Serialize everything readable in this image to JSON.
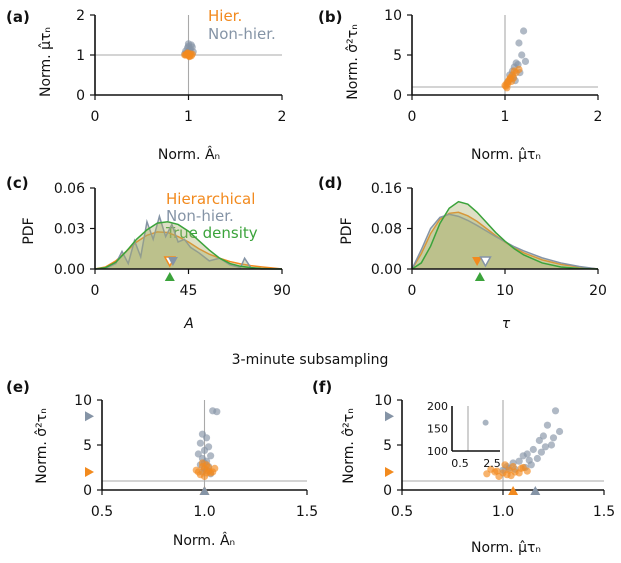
{
  "colors": {
    "hier": "#f28a1e",
    "nonhier": "#8594a6",
    "true": "#3ba33b",
    "refline": "#a9a9a9",
    "fill": "#a8ad69"
  },
  "subsampling_title": "3-minute subsampling",
  "chart_data": [
    {
      "id": "a",
      "type": "scatter",
      "panel_label": "(a)",
      "xlabel": "Norm. Âₙ",
      "ylabel": "Norm. μ̂τₙ",
      "xlim": [
        0,
        2
      ],
      "ylim": [
        0,
        2
      ],
      "xticks": [
        "0",
        "1",
        "2"
      ],
      "yticks": [
        "0",
        "1",
        "2"
      ],
      "xtick_values": [
        0,
        1,
        2
      ],
      "ytick_values": [
        0,
        1,
        2
      ],
      "refline_x": 1,
      "refline_y": 1,
      "legend": [
        {
          "name": "Hier.",
          "color_key": "hier"
        },
        {
          "name": "Non-hier.",
          "color_key": "nonhier"
        }
      ],
      "series": [
        {
          "name": "Non-hier.",
          "color_key": "nonhier",
          "x": [
            1.0,
            1.02,
            0.97,
            1.05,
            0.99,
            1.03,
            0.98,
            1.01,
            1.04,
            0.96,
            1.02,
            1.0
          ],
          "y": [
            1.22,
            1.15,
            1.1,
            1.08,
            1.18,
            1.25,
            1.05,
            1.12,
            1.2,
            1.03,
            1.06,
            1.28
          ]
        },
        {
          "name": "Hier.",
          "color_key": "hier",
          "x": [
            0.97,
            1.0,
            1.03,
            0.99,
            1.01,
            0.98,
            1.02,
            1.0,
            0.96,
            1.04,
            1.01,
            0.99
          ],
          "y": [
            1.0,
            1.02,
            0.98,
            1.05,
            0.96,
            1.01,
            1.03,
            0.99,
            1.0,
            1.02,
            0.97,
            1.04
          ]
        }
      ]
    },
    {
      "id": "b",
      "type": "scatter",
      "panel_label": "(b)",
      "xlabel": "Norm. μ̂τₙ",
      "ylabel": "Norm. σ̂²τₙ",
      "xlim": [
        0,
        2
      ],
      "ylim": [
        0,
        10
      ],
      "xticks": [
        "0",
        "1",
        "2"
      ],
      "yticks": [
        "0",
        "5",
        "10"
      ],
      "xtick_values": [
        0,
        1,
        2
      ],
      "ytick_values": [
        0,
        5,
        10
      ],
      "refline_x": 1,
      "refline_y": 1,
      "series": [
        {
          "name": "Non-hier.",
          "color_key": "nonhier",
          "x": [
            1.2,
            1.15,
            1.18,
            1.12,
            1.1,
            1.08,
            1.05,
            1.14,
            1.22,
            1.16,
            1.09,
            1.03,
            1.11,
            1.06
          ],
          "y": [
            8.0,
            6.5,
            5.0,
            4.0,
            3.5,
            3.0,
            2.5,
            3.8,
            4.2,
            2.8,
            2.2,
            1.6,
            1.8,
            2.0
          ]
        },
        {
          "name": "Hier.",
          "color_key": "hier",
          "x": [
            1.0,
            1.02,
            1.05,
            1.08,
            1.04,
            1.1,
            1.06,
            1.01,
            1.12,
            1.03,
            1.07,
            1.15,
            1.02,
            1.09
          ],
          "y": [
            1.2,
            1.5,
            2.0,
            2.5,
            1.8,
            3.0,
            2.2,
            1.1,
            2.8,
            1.4,
            1.7,
            3.2,
            0.9,
            2.1
          ]
        }
      ]
    },
    {
      "id": "c",
      "type": "area",
      "panel_label": "(c)",
      "xlabel": "A",
      "ylabel": "PDF",
      "xlim": [
        0,
        90
      ],
      "ylim": [
        0,
        0.06
      ],
      "xticks": [
        "0",
        "45",
        "90"
      ],
      "yticks": [
        "0.00",
        "0.03",
        "0.06"
      ],
      "xtick_values": [
        0,
        45,
        90
      ],
      "ytick_values": [
        0,
        0.03,
        0.06
      ],
      "legend": [
        {
          "name": "Hierarchical",
          "color_key": "hier"
        },
        {
          "name": "Non-hier.",
          "color_key": "nonhier"
        },
        {
          "name": "True density",
          "color_key": "true"
        }
      ],
      "series": [
        {
          "name": "Hierarchical",
          "color_key": "hier",
          "x": [
            0,
            5,
            10,
            15,
            20,
            25,
            30,
            35,
            40,
            45,
            50,
            55,
            60,
            65,
            70,
            75,
            80,
            85,
            90
          ],
          "y": [
            0,
            0.0015,
            0.006,
            0.013,
            0.02,
            0.025,
            0.0275,
            0.027,
            0.024,
            0.02,
            0.015,
            0.011,
            0.008,
            0.0055,
            0.0038,
            0.0025,
            0.0016,
            0.0008,
            0
          ]
        },
        {
          "name": "Non-hier.",
          "color_key": "nonhier",
          "x": [
            0,
            5,
            10,
            13,
            16,
            19,
            22,
            25,
            28,
            31,
            34,
            37,
            40,
            43,
            46,
            50,
            55,
            60,
            65,
            70,
            72,
            75,
            80,
            90
          ],
          "y": [
            0,
            0.0005,
            0.004,
            0.013,
            0.004,
            0.021,
            0.009,
            0.035,
            0.022,
            0.039,
            0.024,
            0.033,
            0.02,
            0.022,
            0.016,
            0.012,
            0.006,
            0.008,
            0.003,
            0.001,
            0.008,
            0.001,
            0,
            0
          ]
        },
        {
          "name": "True density",
          "color_key": "true",
          "x": [
            0,
            5,
            10,
            15,
            20,
            25,
            30,
            35,
            40,
            45,
            50,
            55,
            60,
            65,
            70,
            75,
            80,
            85,
            90
          ],
          "y": [
            0,
            0.001,
            0.005,
            0.013,
            0.022,
            0.029,
            0.034,
            0.035,
            0.033,
            0.028,
            0.021,
            0.014,
            0.008,
            0.004,
            0.002,
            0.001,
            0.0004,
            0.0001,
            0
          ]
        }
      ],
      "markers": [
        {
          "series": "Hierarchical",
          "color_key": "hier",
          "x": 36,
          "shape": "down-hollow"
        },
        {
          "series": "Non-hier.",
          "color_key": "nonhier",
          "x": 37.5,
          "shape": "down"
        },
        {
          "series": "True density",
          "color_key": "true",
          "x": 36,
          "shape": "up"
        }
      ]
    },
    {
      "id": "d",
      "type": "area",
      "panel_label": "(d)",
      "xlabel": "τ",
      "ylabel": "PDF",
      "xlim": [
        0,
        20
      ],
      "ylim": [
        0,
        0.16
      ],
      "xticks": [
        "0",
        "10",
        "20"
      ],
      "yticks": [
        "0.00",
        "0.08",
        "0.16"
      ],
      "xtick_values": [
        0,
        10,
        20
      ],
      "ytick_values": [
        0,
        0.08,
        0.16
      ],
      "series": [
        {
          "name": "Hierarchical",
          "color_key": "hier",
          "x": [
            0,
            1,
            2,
            3,
            4,
            5,
            6,
            7,
            8,
            9,
            10,
            11,
            12,
            14,
            16,
            18,
            20
          ],
          "y": [
            0,
            0.03,
            0.07,
            0.098,
            0.11,
            0.112,
            0.105,
            0.094,
            0.08,
            0.066,
            0.053,
            0.042,
            0.032,
            0.018,
            0.009,
            0.004,
            0
          ]
        },
        {
          "name": "Non-hier.",
          "color_key": "nonhier",
          "x": [
            0,
            1,
            2,
            3,
            4,
            5,
            6,
            7,
            8,
            9,
            10,
            11,
            12,
            14,
            16,
            18,
            20
          ],
          "y": [
            0,
            0.038,
            0.08,
            0.102,
            0.108,
            0.104,
            0.096,
            0.086,
            0.075,
            0.064,
            0.054,
            0.044,
            0.036,
            0.022,
            0.012,
            0.005,
            0
          ]
        },
        {
          "name": "True density",
          "color_key": "true",
          "x": [
            0,
            1,
            2,
            3,
            4,
            5,
            6,
            7,
            8,
            9,
            10,
            11,
            12,
            14,
            16,
            18,
            20
          ],
          "y": [
            0,
            0.012,
            0.045,
            0.09,
            0.12,
            0.133,
            0.128,
            0.112,
            0.092,
            0.072,
            0.055,
            0.04,
            0.028,
            0.012,
            0.004,
            0.001,
            0
          ]
        }
      ],
      "markers": [
        {
          "series": "Hierarchical",
          "color_key": "hier",
          "x": 7.0,
          "shape": "down"
        },
        {
          "series": "Non-hier.",
          "color_key": "nonhier",
          "x": 7.9,
          "shape": "down-hollow"
        },
        {
          "series": "True density",
          "color_key": "true",
          "x": 7.3,
          "shape": "up"
        }
      ]
    },
    {
      "id": "e",
      "type": "scatter",
      "panel_label": "(e)",
      "xlabel": "Norm. Âₙ",
      "ylabel": "Norm. σ̂²τₙ",
      "xlim": [
        0.5,
        1.5
      ],
      "ylim": [
        0,
        10
      ],
      "xticks": [
        "0.5",
        "1.0",
        "1.5"
      ],
      "yticks": [
        "0",
        "5",
        "10"
      ],
      "xtick_values": [
        0.5,
        1.0,
        1.5
      ],
      "ytick_values": [
        0,
        5,
        10
      ],
      "refline_x": 1,
      "refline_y": 1,
      "series": [
        {
          "name": "Non-hier.",
          "color_key": "nonhier",
          "x": [
            1.04,
            1.06,
            0.99,
            1.01,
            0.98,
            1.02,
            1.0,
            0.97,
            1.03,
            0.99,
            1.01,
            1.0,
            0.98,
            1.02,
            1.0,
            1.01,
            0.99,
            1.03
          ],
          "y": [
            8.8,
            8.7,
            6.2,
            5.8,
            5.2,
            4.8,
            4.4,
            4.0,
            3.8,
            3.5,
            3.2,
            3.0,
            2.8,
            2.6,
            2.4,
            2.2,
            2.0,
            1.8
          ]
        },
        {
          "name": "Hier.",
          "color_key": "hier",
          "x": [
            0.97,
            1.0,
            1.03,
            0.99,
            1.02,
            1.05,
            0.98,
            1.01,
            1.04,
            0.96,
            1.0,
            1.02,
            0.99,
            1.01
          ],
          "y": [
            2.0,
            2.3,
            1.9,
            2.6,
            2.1,
            2.4,
            1.7,
            2.8,
            2.0,
            2.2,
            1.5,
            2.5,
            3.0,
            1.9
          ]
        }
      ],
      "markers": [
        {
          "axis": "y",
          "color_key": "nonhier",
          "value": 8.2
        },
        {
          "axis": "y",
          "color_key": "hier",
          "value": 2.0
        },
        {
          "axis": "x",
          "color_key": "hier",
          "value": 1.0
        },
        {
          "axis": "x",
          "color_key": "nonhier",
          "value": 1.0
        }
      ]
    },
    {
      "id": "f",
      "type": "scatter",
      "panel_label": "(f)",
      "xlabel": "Norm. μ̂τₙ",
      "ylabel": "Norm. σ̂²τₙ",
      "xlim": [
        0.5,
        1.5
      ],
      "ylim": [
        0,
        10
      ],
      "xticks": [
        "0.5",
        "1.0",
        "1.5"
      ],
      "yticks": [
        "0",
        "5",
        "10"
      ],
      "xtick_values": [
        0.5,
        1.0,
        1.5
      ],
      "ytick_values": [
        0,
        5,
        10
      ],
      "refline_x": 1,
      "refline_y": 1,
      "series": [
        {
          "name": "Non-hier.",
          "color_key": "nonhier",
          "x": [
            1.26,
            1.22,
            1.28,
            1.2,
            1.18,
            1.24,
            1.15,
            1.12,
            1.1,
            1.17,
            1.08,
            1.05,
            1.14,
            1.02,
            1.21,
            1.11,
            1.06,
            1.0,
            1.13,
            1.19,
            1.25,
            1.03
          ],
          "y": [
            8.8,
            7.2,
            6.5,
            6.0,
            5.5,
            5.0,
            4.5,
            4.0,
            3.8,
            3.5,
            3.2,
            3.0,
            2.8,
            2.6,
            4.8,
            2.5,
            2.3,
            2.2,
            3.3,
            4.2,
            5.8,
            2.4
          ]
        },
        {
          "name": "Hier.",
          "color_key": "hier",
          "x": [
            0.92,
            0.96,
            1.0,
            1.03,
            1.06,
            1.09,
            1.12,
            0.98,
            1.02,
            1.05,
            1.08,
            0.94,
            1.01,
            1.04,
            1.1,
            0.97
          ],
          "y": [
            1.8,
            2.0,
            1.9,
            2.2,
            2.0,
            2.4,
            2.1,
            1.5,
            1.7,
            2.6,
            1.9,
            2.3,
            2.8,
            1.6,
            2.5,
            2.1
          ]
        }
      ],
      "markers": [
        {
          "axis": "y",
          "color_key": "nonhier",
          "value": 8.2
        },
        {
          "axis": "y",
          "color_key": "hier",
          "value": 2.0
        },
        {
          "axis": "x",
          "color_key": "hier",
          "value": 1.05
        },
        {
          "axis": "x",
          "color_key": "nonhier",
          "value": 1.16
        }
      ],
      "inset": {
        "xlim": [
          0,
          3
        ],
        "ylim": [
          100,
          200
        ],
        "xticks": [
          "0.5",
          "2.5"
        ],
        "yticks": [
          "100",
          "150",
          "200"
        ],
        "xtick_values": [
          0.5,
          2.5
        ],
        "ytick_values": [
          100,
          150,
          200
        ],
        "refline_x": 1,
        "points": [
          {
            "x": 2.1,
            "y": 163,
            "color_key": "nonhier"
          }
        ]
      }
    }
  ]
}
